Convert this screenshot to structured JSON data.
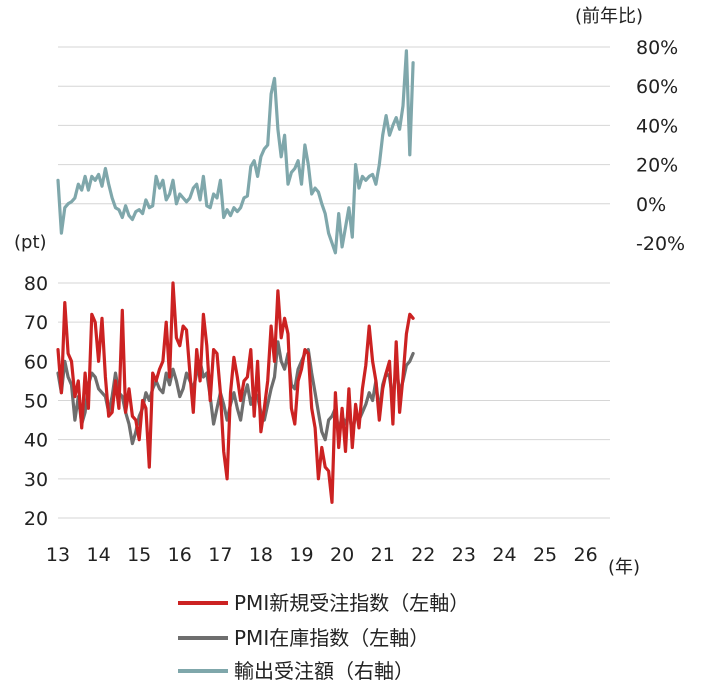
{
  "chart_data": {
    "type": "line",
    "units": {
      "left": "(pt)",
      "right": "(前年比)",
      "x": "(年)"
    },
    "x_tick_labels": [
      "13",
      "14",
      "15",
      "16",
      "17",
      "18",
      "19",
      "20",
      "21",
      "22",
      "23",
      "24",
      "25",
      "26"
    ],
    "left_axis": {
      "ticks": [
        "80",
        "70",
        "60",
        "50",
        "40",
        "30",
        "20"
      ],
      "ylim": [
        20,
        80
      ]
    },
    "right_axis": {
      "ticks": [
        "80%",
        "60%",
        "40%",
        "20%",
        "0%",
        "-20%"
      ],
      "ylim": [
        -20,
        80
      ],
      "negative_color": "#e02020"
    },
    "grid": true,
    "legend_position": "bottom",
    "x_start": 2013,
    "x_step": 0.25,
    "series": [
      {
        "name": "PMI新規受注指数（左軸）",
        "axis": "left",
        "color": "#cc2222",
        "values": [
          63,
          52,
          75,
          62,
          60,
          51,
          55,
          43,
          57,
          48,
          72,
          70,
          60,
          71,
          56,
          46,
          47,
          55,
          48,
          73,
          47,
          53,
          46,
          45,
          40,
          50,
          48,
          33,
          57,
          55,
          58,
          60,
          70,
          56,
          80,
          66,
          64,
          69,
          68,
          57,
          47,
          63,
          55,
          72,
          64,
          50,
          63,
          62,
          52,
          37,
          30,
          52,
          61,
          56,
          50,
          55,
          56,
          63,
          46,
          60,
          42,
          48,
          55,
          69,
          60,
          78,
          66,
          71,
          67,
          48,
          44,
          55,
          58,
          63,
          62,
          48,
          43,
          30,
          38,
          33,
          32,
          24,
          52,
          38,
          48,
          37,
          53,
          38,
          49,
          43,
          53,
          59,
          69,
          60,
          55,
          45,
          53,
          57,
          60,
          44,
          65,
          47,
          56,
          67,
          72,
          71
        ]
      },
      {
        "name": "PMI在庫指数（左軸）",
        "axis": "left",
        "color": "#6e6e6e",
        "values": [
          57,
          52,
          60,
          56,
          54,
          45,
          51,
          44,
          47,
          54,
          57,
          56,
          53,
          52,
          51,
          47,
          51,
          57,
          52,
          51,
          47,
          44,
          39,
          42,
          46,
          48,
          52,
          50,
          53,
          55,
          53,
          52,
          57,
          54,
          58,
          55,
          51,
          53,
          57,
          55,
          53,
          57,
          60,
          56,
          57,
          51,
          44,
          48,
          52,
          49,
          45,
          49,
          52,
          48,
          45,
          51,
          54,
          49,
          52,
          51,
          47,
          45,
          49,
          53,
          56,
          65,
          60,
          58,
          62,
          54,
          53,
          58,
          60,
          62,
          63,
          57,
          52,
          47,
          42,
          40,
          45,
          46,
          48,
          42,
          46,
          44,
          47,
          42,
          46,
          45,
          47,
          49,
          52,
          50,
          55,
          47,
          54,
          57,
          56,
          50,
          59,
          52,
          55,
          59,
          60,
          62
        ]
      },
      {
        "name": "輸出受注額（右軸）",
        "axis": "right",
        "color": "#7fa7ab",
        "values": [
          12,
          -15,
          -2,
          0,
          1,
          3,
          10,
          7,
          14,
          7,
          14,
          12,
          15,
          9,
          18,
          10,
          3,
          -2,
          -3,
          -7,
          -1,
          -6,
          -8,
          -4,
          -3,
          -5,
          2,
          -2,
          -1,
          14,
          8,
          12,
          2,
          5,
          12,
          0,
          5,
          3,
          1,
          3,
          8,
          10,
          2,
          14,
          -1,
          -2,
          5,
          3,
          12,
          -7,
          -3,
          -6,
          -2,
          -4,
          -2,
          3,
          4,
          19,
          22,
          14,
          24,
          28,
          30,
          56,
          64,
          38,
          24,
          35,
          10,
          16,
          18,
          22,
          10,
          30,
          20,
          5,
          8,
          6,
          0,
          -5,
          -15,
          -20,
          -25,
          -5,
          -22,
          -12,
          -2,
          -17,
          20,
          8,
          14,
          12,
          14,
          15,
          10,
          20,
          35,
          45,
          35,
          40,
          44,
          38,
          50,
          78,
          25,
          72
        ]
      }
    ]
  }
}
